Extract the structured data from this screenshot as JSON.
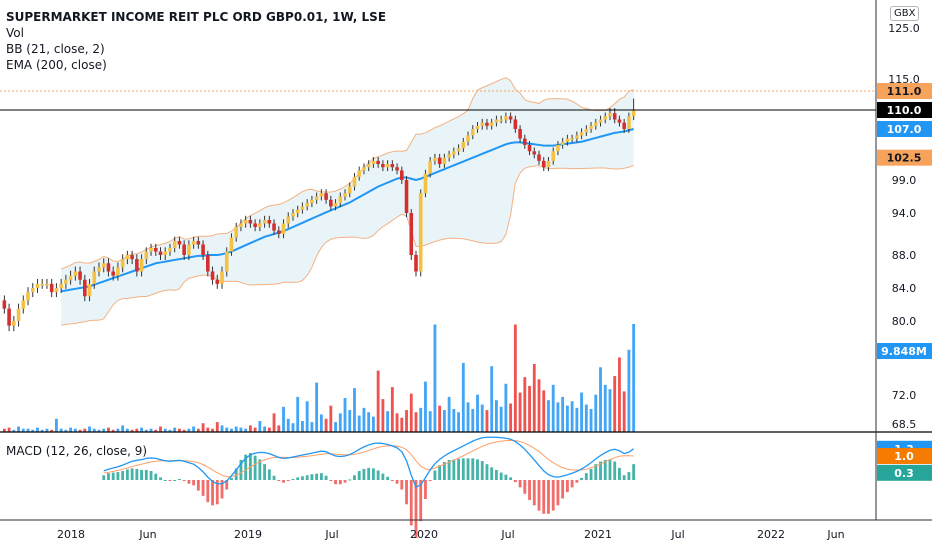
{
  "legend": {
    "title": "SUPERMARKET INCOME REIT PLC ORD GBP0.01, 1W, LSE",
    "vol": "Vol",
    "bb": "BB (21, close, 2)",
    "ema": "EMA (200, close)",
    "macd": "MACD (12, 26, close, 9)"
  },
  "currency_badge": "GBX",
  "colors": {
    "up": "#f5c142",
    "down": "#d32f2f",
    "bb_band": "#f4b183",
    "bb_fill": "#e8f4f8",
    "basis": "#2196f3",
    "vol_up": "#42a5f5",
    "vol_down": "#ef5350",
    "macd_line": "#2196f3",
    "signal_line": "#ff9e66",
    "hist_up": "#26a69a",
    "hist_down": "#ef5350"
  },
  "chart_data": {
    "type": "candlestick",
    "timeframe": "1W",
    "price_axis": {
      "ticks": [
        "125.0",
        "115.0",
        "99.0",
        "94.0",
        "88.0",
        "84.0",
        "80.0",
        "72.0",
        "68.5"
      ],
      "tags": [
        {
          "label": "111.0",
          "value": 111.0,
          "bg": "#f7a35c",
          "fg": "#131722"
        },
        {
          "label": "110.0",
          "value": 110.0,
          "bg": "#000000",
          "fg": "#ffffff"
        },
        {
          "label": "107.0",
          "value": 107.0,
          "bg": "#2196f3",
          "fg": "#ffffff"
        },
        {
          "label": "102.5",
          "value": 102.5,
          "bg": "#f7a35c",
          "fg": "#131722"
        }
      ],
      "volume_tag": {
        "label": "9.848M",
        "bg": "#2196f3",
        "fg": "#ffffff"
      }
    },
    "macd_axis": {
      "tags": [
        {
          "label": "1.3",
          "value": 1.3,
          "bg": "#2196f3",
          "fg": "#ffffff"
        },
        {
          "label": "1.0",
          "value": 1.0,
          "bg": "#f57c00",
          "fg": "#ffffff"
        },
        {
          "label": "0.3",
          "value": 0.3,
          "bg": "#26a69a",
          "fg": "#ffffff"
        }
      ]
    },
    "time_axis": [
      "2018",
      "Jun",
      "2019",
      "Jul",
      "2020",
      "Jul",
      "2021",
      "Jul",
      "2022",
      "Jun"
    ],
    "series_close": [
      81.5,
      79.5,
      80.0,
      81.5,
      82.5,
      83.5,
      84.0,
      84.5,
      84.5,
      84.5,
      83.5,
      84.0,
      84.5,
      85.0,
      85.5,
      86.0,
      85.0,
      83.0,
      84.5,
      86.0,
      86.5,
      87.0,
      86.0,
      85.5,
      86.5,
      87.5,
      88.0,
      87.5,
      86.0,
      87.5,
      88.5,
      89.0,
      88.5,
      88.0,
      88.5,
      89.0,
      90.0,
      89.5,
      88.0,
      89.5,
      90.0,
      89.5,
      88.0,
      86.0,
      85.0,
      84.5,
      86.0,
      88.5,
      90.5,
      92.0,
      92.5,
      93.0,
      92.5,
      92.0,
      92.5,
      93.0,
      92.5,
      91.5,
      91.0,
      92.5,
      93.5,
      94.0,
      94.5,
      95.0,
      95.5,
      96.0,
      96.5,
      97.0,
      96.0,
      95.0,
      95.5,
      96.5,
      97.0,
      98.0,
      99.5,
      100.5,
      101.0,
      101.5,
      102.0,
      101.5,
      101.0,
      101.5,
      101.0,
      100.5,
      99.0,
      94.0,
      88.0,
      86.0,
      97.0,
      100.0,
      102.0,
      102.5,
      101.5,
      102.5,
      103.0,
      103.5,
      104.0,
      105.0,
      106.0,
      107.0,
      107.5,
      108.0,
      107.5,
      108.0,
      108.5,
      108.5,
      109.0,
      108.5,
      107.0,
      105.5,
      104.5,
      103.5,
      103.0,
      102.0,
      101.0,
      102.0,
      103.5,
      104.5,
      105.0,
      105.5,
      105.5,
      106.0,
      106.5,
      107.0,
      107.5,
      108.0,
      108.5,
      109.0,
      109.5,
      108.5,
      108.0,
      107.0,
      109.0,
      110.0
    ],
    "series_ema200": [
      82.5,
      82.6,
      82.6,
      82.7,
      82.8,
      82.9,
      83.0,
      83.1,
      83.2,
      83.3,
      83.4,
      83.5,
      83.6,
      83.7,
      83.8,
      83.9,
      84.0,
      84.1,
      84.2,
      84.4,
      84.6,
      84.8,
      85.0,
      85.2,
      85.4,
      85.6,
      85.8,
      86.0,
      86.2,
      86.4,
      86.6,
      86.8,
      87.0,
      87.1,
      87.2,
      87.3,
      87.4,
      87.5,
      87.6,
      87.7,
      87.8,
      87.9,
      87.9,
      88.0,
      88.0,
      88.0,
      88.1,
      88.3,
      88.5,
      88.8,
      89.1,
      89.4,
      89.7,
      90.0,
      90.3,
      90.6,
      90.8,
      91.0,
      91.2,
      91.4,
      91.7,
      92.0,
      92.3,
      92.6,
      92.9,
      93.2,
      93.5,
      93.8,
      94.1,
      94.4,
      94.7,
      95.0,
      95.3,
      95.6,
      96.0,
      96.4,
      96.8,
      97.2,
      97.6,
      98.0,
      98.3,
      98.6,
      98.9,
      99.2,
      99.4,
      99.4,
      99.2,
      99.0,
      99.2,
      99.5,
      99.8,
      100.1,
      100.4,
      100.7,
      101.0,
      101.3,
      101.6,
      101.9,
      102.2,
      102.5,
      102.8,
      103.1,
      103.4,
      103.7,
      104.0,
      104.3,
      104.6,
      104.8,
      104.9,
      104.9,
      104.8,
      104.7,
      104.6,
      104.5,
      104.4,
      104.4,
      104.4,
      104.5,
      104.6,
      104.7,
      104.8,
      104.9,
      105.0,
      105.2,
      105.4,
      105.6,
      105.8,
      106.0,
      106.2,
      106.4,
      106.5,
      106.6,
      106.8,
      107.0
    ],
    "series_volume_m": [
      0.3,
      0.4,
      0.2,
      0.5,
      0.3,
      0.3,
      0.2,
      0.4,
      0.2,
      0.3,
      0.2,
      1.2,
      0.3,
      0.2,
      0.4,
      0.3,
      0.2,
      0.3,
      0.5,
      0.3,
      0.2,
      0.3,
      0.4,
      0.2,
      0.3,
      0.6,
      0.3,
      0.2,
      0.3,
      0.4,
      0.2,
      0.3,
      0.2,
      0.5,
      0.3,
      0.2,
      0.4,
      0.3,
      0.2,
      0.3,
      0.5,
      0.3,
      0.8,
      0.4,
      0.3,
      0.9,
      0.6,
      0.4,
      0.3,
      0.5,
      0.4,
      0.3,
      0.6,
      0.4,
      1.0,
      0.5,
      0.4,
      1.7,
      0.6,
      2.3,
      1.2,
      0.8,
      3.2,
      1.0,
      2.8,
      0.9,
      4.5,
      1.6,
      1.2,
      2.4,
      0.9,
      1.7,
      3.1,
      2.0,
      4.0,
      1.5,
      2.2,
      1.8,
      1.4,
      5.6,
      3.0,
      1.9,
      4.1,
      1.7,
      1.3,
      2.0,
      3.5,
      1.8,
      2.2,
      4.6,
      1.9,
      9.8,
      2.4,
      2.0,
      3.2,
      2.1,
      1.8,
      6.3,
      2.7,
      2.1,
      3.4,
      2.5,
      2.0,
      6.0,
      2.9,
      2.3,
      4.4,
      2.6,
      9.8,
      3.6,
      5.0,
      4.2,
      6.2,
      4.8,
      3.8,
      2.9,
      4.3,
      2.7,
      3.2,
      2.4,
      2.8,
      2.2,
      3.6,
      2.5,
      2.1,
      3.4,
      5.9,
      4.3,
      3.9,
      5.1,
      6.8,
      3.7,
      7.5,
      9.848
    ],
    "macd": {
      "macd_line": [
        0.1,
        0.12,
        0.15,
        0.18,
        0.22,
        0.25,
        0.28,
        0.3,
        0.32,
        0.32,
        0.3,
        0.29,
        0.28,
        0.28,
        0.29,
        0.3,
        0.28,
        0.22,
        0.2,
        0.24,
        0.3,
        0.38,
        0.45,
        0.5,
        0.55,
        0.62,
        0.7,
        0.78,
        0.82,
        0.85,
        0.9,
        0.92,
        0.9,
        0.85,
        0.8,
        0.78,
        0.8,
        0.82,
        0.78,
        0.72,
        0.66,
        0.52,
        0.34,
        0.12,
        -0.06,
        -0.16,
        -0.15,
        -0.04,
        0.18,
        0.42,
        0.68,
        0.9,
        1.05,
        1.12,
        1.15,
        1.14,
        1.1,
        1.02,
        0.94,
        0.9,
        0.92,
        0.96,
        1.0,
        1.04,
        1.08,
        1.12,
        1.16,
        1.2,
        1.18,
        1.08,
        1.0,
        0.98,
        1.0,
        1.06,
        1.16,
        1.28,
        1.38,
        1.46,
        1.52,
        1.54,
        1.52,
        1.48,
        1.42,
        1.34,
        1.18,
        0.8,
        0.2,
        -0.3,
        -0.2,
        0.1,
        0.42,
        0.68,
        0.86,
        1.0,
        1.12,
        1.22,
        1.32,
        1.42,
        1.52,
        1.62,
        1.7,
        1.76,
        1.78,
        1.78,
        1.78,
        1.76,
        1.74,
        1.7,
        1.6,
        1.46,
        1.28,
        1.06,
        0.84,
        0.6,
        0.38,
        0.22,
        0.14,
        0.12,
        0.16,
        0.22,
        0.28,
        0.36,
        0.46,
        0.58,
        0.72,
        0.88,
        1.02,
        1.14,
        1.24,
        1.28,
        1.22,
        1.1,
        1.16,
        1.3
      ],
      "signal_line": [
        0.08,
        0.1,
        0.12,
        0.14,
        0.16,
        0.18,
        0.21,
        0.23,
        0.25,
        0.27,
        0.28,
        0.28,
        0.28,
        0.28,
        0.29,
        0.29,
        0.29,
        0.27,
        0.26,
        0.25,
        0.26,
        0.29,
        0.32,
        0.36,
        0.4,
        0.45,
        0.5,
        0.56,
        0.61,
        0.66,
        0.71,
        0.75,
        0.78,
        0.8,
        0.8,
        0.8,
        0.8,
        0.8,
        0.8,
        0.79,
        0.76,
        0.72,
        0.64,
        0.54,
        0.42,
        0.3,
        0.2,
        0.14,
        0.14,
        0.2,
        0.3,
        0.42,
        0.54,
        0.66,
        0.76,
        0.84,
        0.9,
        0.94,
        0.95,
        0.95,
        0.94,
        0.94,
        0.95,
        0.97,
        0.99,
        1.01,
        1.04,
        1.07,
        1.1,
        1.1,
        1.08,
        1.06,
        1.05,
        1.05,
        1.07,
        1.11,
        1.17,
        1.23,
        1.3,
        1.36,
        1.4,
        1.42,
        1.43,
        1.41,
        1.36,
        1.26,
        1.06,
        0.8,
        0.58,
        0.46,
        0.44,
        0.5,
        0.58,
        0.66,
        0.74,
        0.83,
        0.92,
        1.01,
        1.11,
        1.21,
        1.31,
        1.4,
        1.48,
        1.54,
        1.59,
        1.62,
        1.64,
        1.65,
        1.64,
        1.6,
        1.54,
        1.44,
        1.32,
        1.18,
        1.02,
        0.86,
        0.72,
        0.6,
        0.51,
        0.45,
        0.42,
        0.41,
        0.42,
        0.45,
        0.51,
        0.58,
        0.67,
        0.76,
        0.85,
        0.93,
        0.99,
        1.01,
        1.01,
        1.0
      ]
    }
  }
}
